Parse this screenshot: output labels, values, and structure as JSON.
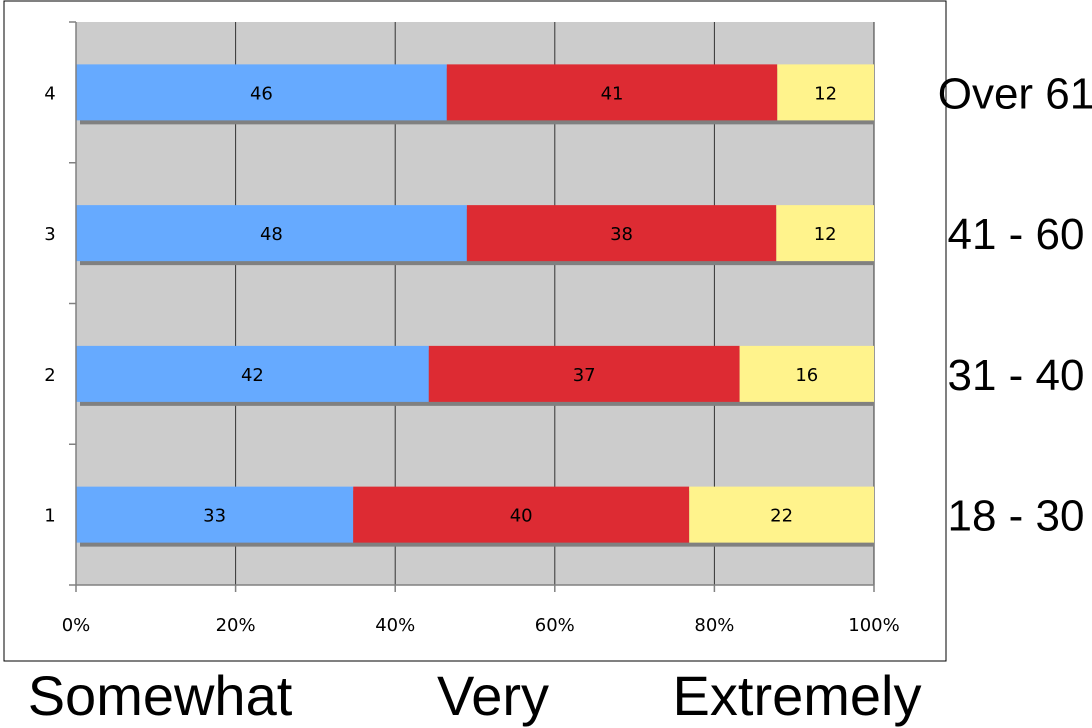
{
  "chart_data": {
    "type": "bar",
    "orientation": "horizontal",
    "stacking": "percent",
    "categories": [
      "1",
      "2",
      "3",
      "4"
    ],
    "group_labels": [
      "18 - 30",
      "31 - 40",
      "41 - 60",
      "Over 61"
    ],
    "series": [
      {
        "name": "Somewhat",
        "values": [
          33,
          42,
          48,
          46
        ],
        "color": "#66aaff"
      },
      {
        "name": "Very",
        "values": [
          40,
          37,
          38,
          41
        ],
        "color": "#dd2b33"
      },
      {
        "name": "Extremely",
        "values": [
          22,
          16,
          12,
          12
        ],
        "color": "#fff38c"
      }
    ],
    "x_ticks": [
      "0%",
      "20%",
      "40%",
      "60%",
      "80%",
      "100%"
    ],
    "xlim": [
      0,
      100
    ],
    "grid": true,
    "plot_background": "#cccccc",
    "legend": "bottom"
  }
}
